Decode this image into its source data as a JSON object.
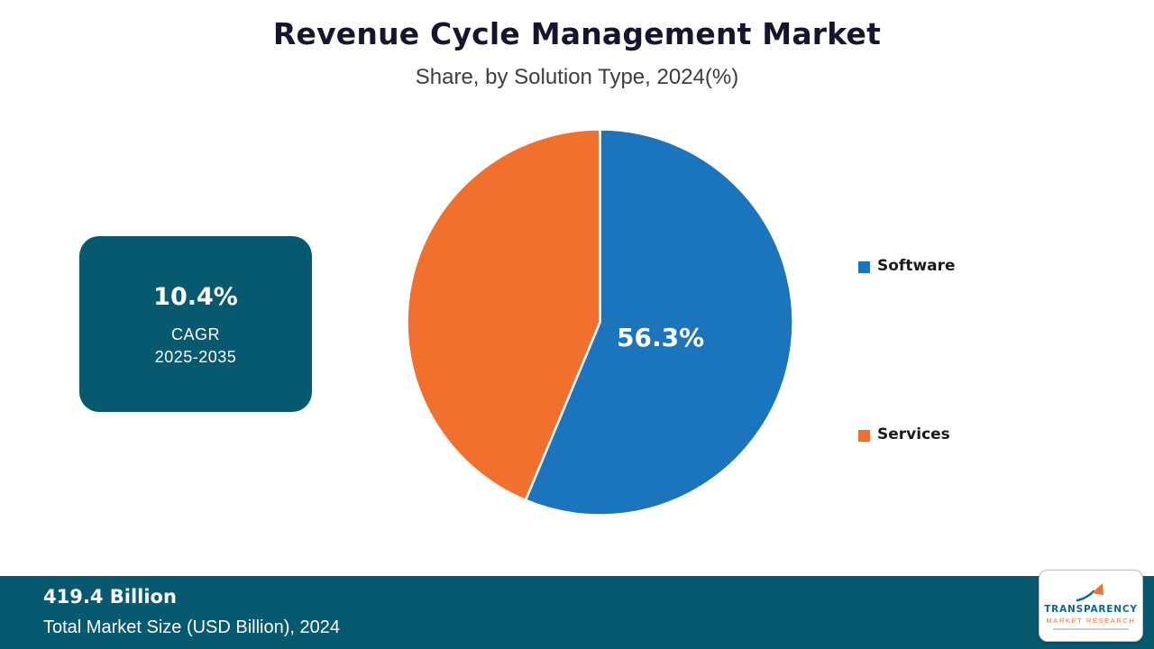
{
  "header": {
    "title": "Revenue Cycle Management Market",
    "subtitle": "Share, by Solution Type, 2024(%)"
  },
  "cagr_box": {
    "value": "10.4%",
    "label": "CAGR",
    "period": "2025-2035"
  },
  "chart_data": {
    "type": "pie",
    "title": "Revenue Cycle Management Market",
    "subtitle": "Share, by Solution Type, 2024(%)",
    "unit": "%",
    "start_angle_deg": 0,
    "direction": "clockwise",
    "legend_position": "right",
    "slices": [
      {
        "label": "Software",
        "value": 56.3,
        "color": "#1b75bc",
        "data_label": "56.3%"
      },
      {
        "label": "Services",
        "value": 43.7,
        "color": "#f2702e",
        "data_label": ""
      }
    ]
  },
  "footer": {
    "market_size": "419.4 Billion",
    "caption": "Total Market Size (USD Billion), 2024"
  },
  "logo": {
    "line1": "TRANSPARENCY",
    "line2": "MARKET RESEARCH"
  },
  "colors": {
    "accent_teal": "#07596f",
    "software_blue": "#1b75bc",
    "services_orange": "#f2702e",
    "title_text": "#15152e"
  }
}
